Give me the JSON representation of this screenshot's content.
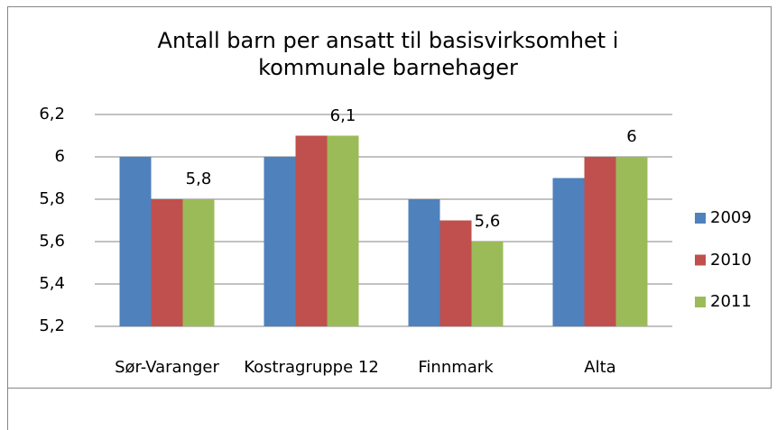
{
  "chart_data": {
    "type": "bar",
    "title": "Antall barn per ansatt til basisvirksomhet i kommunale barnehager",
    "categories": [
      "Sør-Varanger",
      "Kostragruppe 12",
      "Finnmark",
      "Alta"
    ],
    "series": [
      {
        "name": "2009",
        "color": "#4f81bd",
        "values": [
          6,
          6,
          5.8,
          5.9
        ]
      },
      {
        "name": "2010",
        "color": "#c0504d",
        "values": [
          5.8,
          6.1,
          5.7,
          6
        ]
      },
      {
        "name": "2011",
        "color": "#9bbb59",
        "values": [
          5.8,
          6.1,
          5.6,
          6
        ],
        "value_labels": [
          "5,8",
          "6,1",
          "5,6",
          "6"
        ]
      }
    ],
    "ylim": [
      5.2,
      6.2
    ],
    "yticks": [
      {
        "value": 5.2,
        "label": "5,2"
      },
      {
        "value": 5.4,
        "label": "5,4"
      },
      {
        "value": 5.6,
        "label": "5,6"
      },
      {
        "value": 5.8,
        "label": "5,8"
      },
      6,
      {
        "value": 6.2,
        "label": "6,2"
      }
    ],
    "grid": true,
    "legend": "right"
  }
}
